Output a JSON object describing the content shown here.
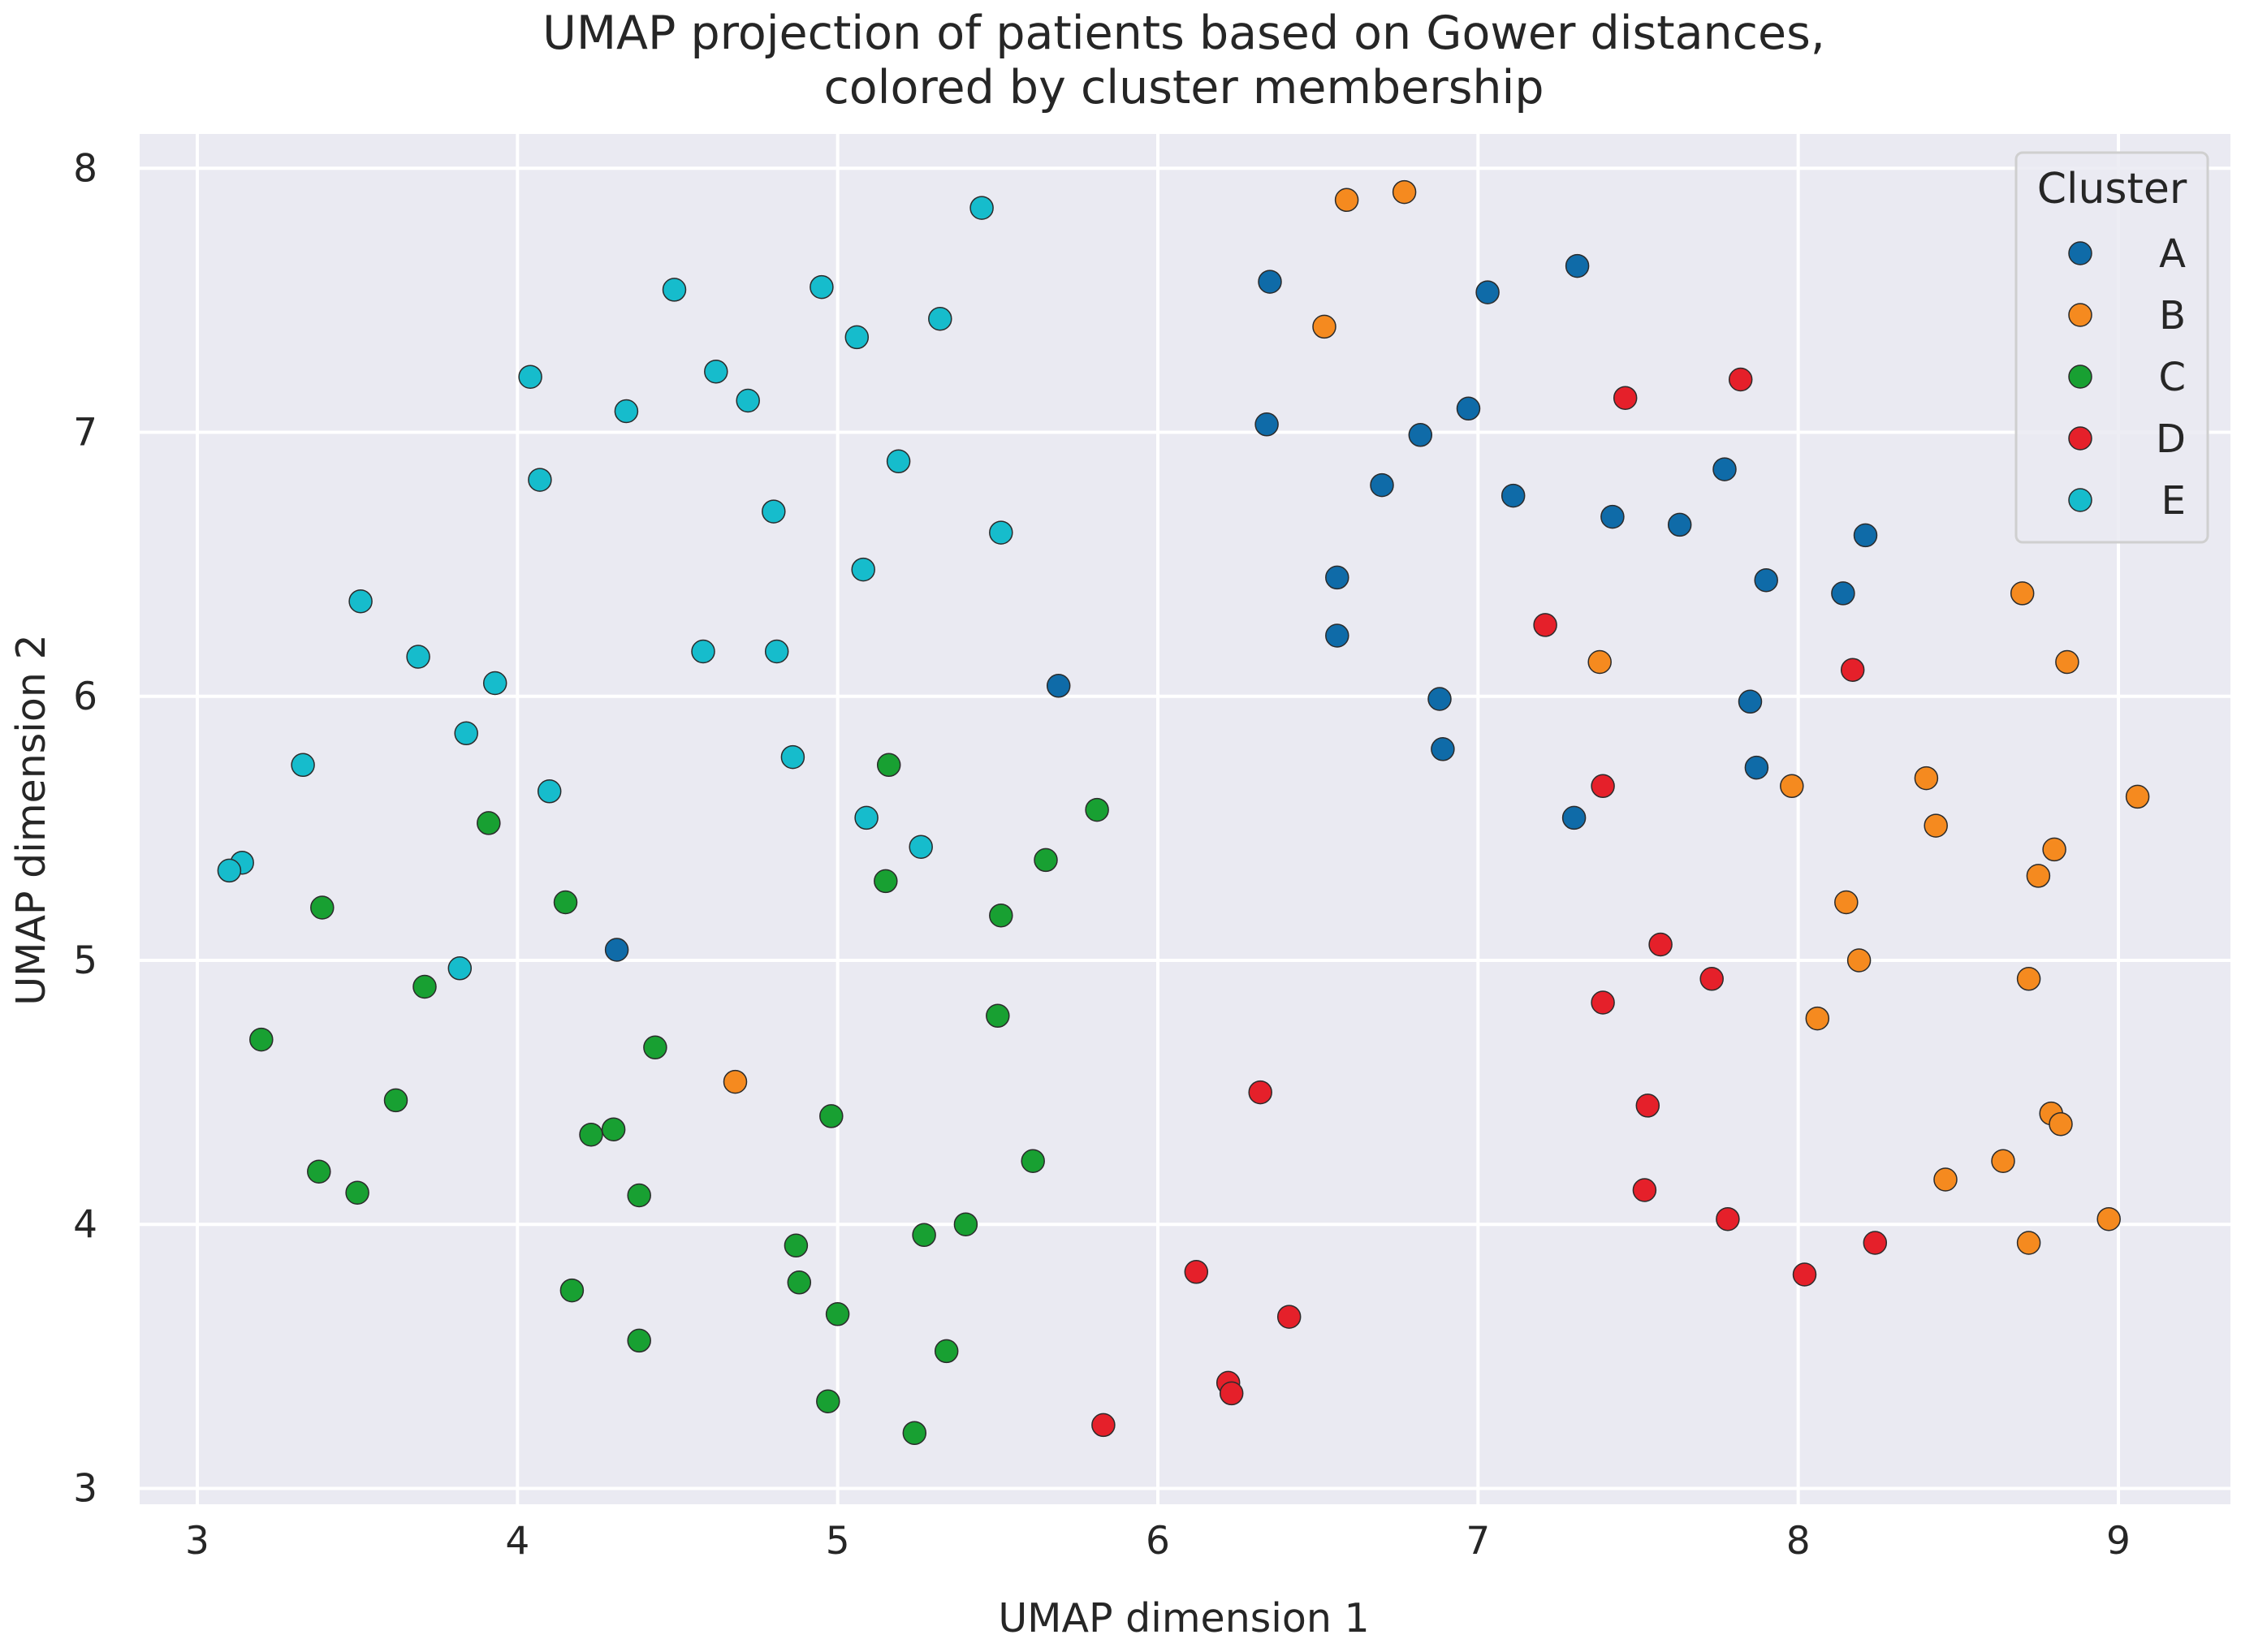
{
  "chart_data": {
    "type": "scatter",
    "title_lines": [
      "UMAP projection of patients based on Gower distances,",
      "colored by cluster membership"
    ],
    "xlabel": "UMAP dimension 1",
    "ylabel": "UMAP dimension 2",
    "xlim": [
      2.82,
      9.35
    ],
    "ylim": [
      2.94,
      8.13
    ],
    "xticks": [
      "3",
      "4",
      "5",
      "6",
      "7",
      "8",
      "9"
    ],
    "yticks": [
      "3",
      "4",
      "5",
      "6",
      "7",
      "8"
    ],
    "grid": true,
    "legend": {
      "title": "Cluster",
      "placement": "top-right"
    },
    "series": [
      {
        "name": "A",
        "color": "#0f6ba8",
        "points": [
          [
            6.35,
            7.57
          ],
          [
            7.31,
            7.63
          ],
          [
            7.03,
            7.53
          ],
          [
            6.34,
            7.03
          ],
          [
            6.97,
            7.09
          ],
          [
            6.82,
            6.99
          ],
          [
            6.7,
            6.8
          ],
          [
            7.11,
            6.76
          ],
          [
            7.42,
            6.68
          ],
          [
            7.63,
            6.65
          ],
          [
            7.77,
            6.86
          ],
          [
            8.21,
            6.61
          ],
          [
            7.9,
            6.44
          ],
          [
            8.14,
            6.39
          ],
          [
            6.56,
            6.45
          ],
          [
            6.56,
            6.23
          ],
          [
            6.88,
            5.99
          ],
          [
            7.85,
            5.98
          ],
          [
            6.89,
            5.8
          ],
          [
            7.87,
            5.73
          ],
          [
            7.3,
            5.54
          ],
          [
            5.69,
            6.04
          ],
          [
            4.31,
            5.04
          ]
        ]
      },
      {
        "name": "B",
        "color": "#f58a1f",
        "points": [
          [
            6.59,
            7.88
          ],
          [
            6.77,
            7.91
          ],
          [
            6.52,
            7.4
          ],
          [
            8.7,
            6.39
          ],
          [
            8.84,
            6.13
          ],
          [
            7.38,
            6.13
          ],
          [
            7.98,
            5.66
          ],
          [
            8.4,
            5.69
          ],
          [
            8.43,
            5.51
          ],
          [
            9.06,
            5.62
          ],
          [
            8.8,
            5.42
          ],
          [
            8.75,
            5.32
          ],
          [
            8.15,
            5.22
          ],
          [
            8.19,
            5.0
          ],
          [
            8.72,
            4.93
          ],
          [
            8.06,
            4.78
          ],
          [
            4.68,
            4.54
          ],
          [
            8.79,
            4.42
          ],
          [
            8.82,
            4.38
          ],
          [
            8.64,
            4.24
          ],
          [
            8.46,
            4.17
          ],
          [
            8.97,
            4.02
          ],
          [
            8.72,
            3.93
          ]
        ]
      },
      {
        "name": "C",
        "color": "#18a032",
        "points": [
          [
            3.91,
            5.52
          ],
          [
            5.16,
            5.74
          ],
          [
            5.81,
            5.57
          ],
          [
            3.39,
            5.2
          ],
          [
            4.15,
            5.22
          ],
          [
            5.15,
            5.3
          ],
          [
            5.65,
            5.38
          ],
          [
            5.51,
            5.17
          ],
          [
            3.71,
            4.9
          ],
          [
            3.2,
            4.7
          ],
          [
            4.43,
            4.67
          ],
          [
            5.5,
            4.79
          ],
          [
            3.62,
            4.47
          ],
          [
            4.98,
            4.41
          ],
          [
            4.3,
            4.36
          ],
          [
            4.23,
            4.34
          ],
          [
            3.38,
            4.2
          ],
          [
            3.5,
            4.12
          ],
          [
            5.61,
            4.24
          ],
          [
            4.38,
            4.11
          ],
          [
            5.4,
            4.0
          ],
          [
            5.27,
            3.96
          ],
          [
            4.87,
            3.92
          ],
          [
            4.17,
            3.75
          ],
          [
            4.88,
            3.78
          ],
          [
            5.0,
            3.66
          ],
          [
            4.38,
            3.56
          ],
          [
            5.34,
            3.52
          ],
          [
            4.97,
            3.33
          ],
          [
            5.24,
            3.21
          ]
        ]
      },
      {
        "name": "D",
        "color": "#e5202a",
        "points": [
          [
            7.46,
            7.13
          ],
          [
            7.82,
            7.2
          ],
          [
            7.21,
            6.27
          ],
          [
            8.17,
            6.1
          ],
          [
            7.39,
            5.66
          ],
          [
            7.57,
            5.06
          ],
          [
            7.73,
            4.93
          ],
          [
            7.39,
            4.84
          ],
          [
            6.32,
            4.5
          ],
          [
            7.53,
            4.45
          ],
          [
            7.52,
            4.13
          ],
          [
            7.78,
            4.02
          ],
          [
            8.24,
            3.93
          ],
          [
            8.02,
            3.81
          ],
          [
            6.12,
            3.82
          ],
          [
            6.41,
            3.65
          ],
          [
            6.22,
            3.4
          ],
          [
            6.23,
            3.36
          ],
          [
            5.83,
            3.24
          ]
        ]
      },
      {
        "name": "E",
        "color": "#16bccc",
        "points": [
          [
            5.45,
            7.85
          ],
          [
            4.49,
            7.54
          ],
          [
            4.95,
            7.55
          ],
          [
            5.32,
            7.43
          ],
          [
            5.06,
            7.36
          ],
          [
            4.04,
            7.21
          ],
          [
            4.62,
            7.23
          ],
          [
            4.72,
            7.12
          ],
          [
            4.34,
            7.08
          ],
          [
            5.19,
            6.89
          ],
          [
            4.07,
            6.82
          ],
          [
            4.8,
            6.7
          ],
          [
            5.51,
            6.62
          ],
          [
            5.08,
            6.48
          ],
          [
            3.51,
            6.36
          ],
          [
            3.69,
            6.15
          ],
          [
            4.58,
            6.17
          ],
          [
            4.81,
            6.17
          ],
          [
            3.93,
            6.05
          ],
          [
            3.84,
            5.86
          ],
          [
            4.86,
            5.77
          ],
          [
            3.33,
            5.74
          ],
          [
            4.1,
            5.64
          ],
          [
            5.09,
            5.54
          ],
          [
            5.26,
            5.43
          ],
          [
            3.14,
            5.37
          ],
          [
            3.1,
            5.34
          ],
          [
            3.82,
            4.97
          ]
        ]
      }
    ]
  }
}
